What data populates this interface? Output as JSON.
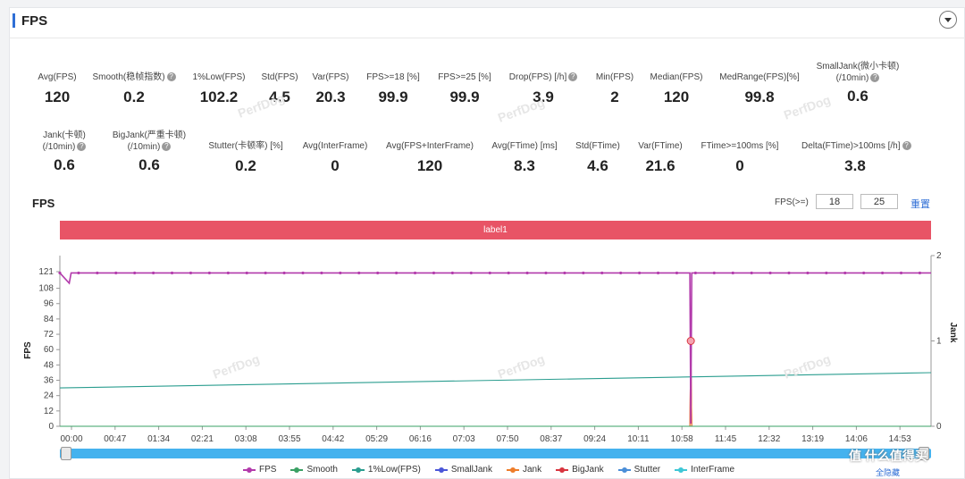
{
  "header": {
    "title": "FPS"
  },
  "metrics_row1": [
    {
      "label": "Avg(FPS)",
      "value": "120",
      "help": false
    },
    {
      "label": "Smooth(稳帧指数)",
      "value": "0.2",
      "help": true
    },
    {
      "label": "1%Low(FPS)",
      "value": "102.2",
      "help": false
    },
    {
      "label": "Std(FPS)",
      "value": "4.5",
      "help": false
    },
    {
      "label": "Var(FPS)",
      "value": "20.3",
      "help": false
    },
    {
      "label": "FPS>=18 [%]",
      "value": "99.9",
      "help": false
    },
    {
      "label": "FPS>=25 [%]",
      "value": "99.9",
      "help": false
    },
    {
      "label": "Drop(FPS) [/h]",
      "value": "3.9",
      "help": true
    },
    {
      "label": "Min(FPS)",
      "value": "2",
      "help": false
    },
    {
      "label": "Median(FPS)",
      "value": "120",
      "help": false
    },
    {
      "label": "MedRange(FPS)[%]",
      "value": "99.8",
      "help": false
    },
    {
      "label": "SmallJank(微小卡顿)",
      "label2": "(/10min)",
      "value": "0.6",
      "help": true
    }
  ],
  "metrics_row2": [
    {
      "label": "Jank(卡顿)",
      "label2": "(/10min)",
      "value": "0.6",
      "help": true
    },
    {
      "label": "BigJank(严重卡顿)",
      "label2": "(/10min)",
      "value": "0.6",
      "help": true
    },
    {
      "label": "Stutter(卡顿率) [%]",
      "value": "0.2",
      "help": false
    },
    {
      "label": "Avg(InterFrame)",
      "value": "0",
      "help": false
    },
    {
      "label": "Avg(FPS+InterFrame)",
      "value": "120",
      "help": false
    },
    {
      "label": "Avg(FTime) [ms]",
      "value": "8.3",
      "help": false
    },
    {
      "label": "Std(FTime)",
      "value": "4.6",
      "help": false
    },
    {
      "label": "Var(FTime)",
      "value": "21.6",
      "help": false
    },
    {
      "label": "FTime>=100ms [%]",
      "value": "0",
      "help": false
    },
    {
      "label": "Delta(FTime)>100ms [/h]",
      "value": "3.8",
      "help": true
    }
  ],
  "watermark": "PerfDog",
  "chart_panel": {
    "title": "FPS",
    "threshold_label": "FPS(>=)",
    "threshold_1": "18",
    "threshold_2": "25",
    "reset_label": "重置",
    "label_bar": "label1",
    "hide_all_label": "全隐藏",
    "brand": "值 什么值得买"
  },
  "chart_data": {
    "type": "line",
    "title": "",
    "ylabel": "FPS",
    "y2label": "Jank",
    "ylim": [
      0,
      121
    ],
    "y2lim": [
      0,
      2
    ],
    "yticks": [
      0,
      12,
      24,
      36,
      48,
      60,
      72,
      84,
      96,
      108,
      121
    ],
    "y2ticks": [
      0,
      1,
      2
    ],
    "xticks": [
      "00:00",
      "00:47",
      "01:34",
      "02:21",
      "03:08",
      "03:55",
      "04:42",
      "05:29",
      "06:16",
      "07:03",
      "07:50",
      "08:37",
      "09:24",
      "10:11",
      "10:58",
      "11:45",
      "12:32",
      "13:19",
      "14:06",
      "14:53"
    ],
    "x_range_seconds": [
      0,
      932
    ],
    "series": [
      {
        "name": "FPS",
        "color": "#b23aab",
        "points": [
          [
            0,
            120
          ],
          [
            10,
            112
          ],
          [
            12,
            120
          ],
          [
            674,
            120
          ],
          [
            675,
            2
          ],
          [
            676,
            120
          ],
          [
            932,
            120
          ]
        ]
      },
      {
        "name": "Smooth",
        "color": "#3aa064",
        "points": [
          [
            0,
            0
          ],
          [
            932,
            0
          ]
        ]
      },
      {
        "name": "1%Low(FPS)",
        "color": "#2a9d8f",
        "points": [
          [
            0,
            30
          ],
          [
            932,
            42
          ]
        ]
      },
      {
        "name": "SmallJank",
        "color": "#4a56d8",
        "points": [
          [
            0,
            0
          ],
          [
            932,
            0
          ]
        ]
      },
      {
        "name": "Jank",
        "color": "#ee7d2a",
        "points": [
          [
            0,
            0
          ],
          [
            674,
            0
          ],
          [
            675,
            1
          ],
          [
            676,
            0
          ],
          [
            932,
            0
          ]
        ]
      },
      {
        "name": "BigJank",
        "color": "#d8343f",
        "points": [
          [
            0,
            0
          ],
          [
            674,
            0
          ],
          [
            675,
            1
          ],
          [
            676,
            0
          ],
          [
            932,
            0
          ]
        ]
      },
      {
        "name": "Stutter",
        "color": "#4a8ed8",
        "points": [
          [
            0,
            0
          ],
          [
            932,
            0
          ]
        ]
      },
      {
        "name": "InterFrame",
        "color": "#3ec7d6",
        "points": [
          [
            0,
            0
          ],
          [
            932,
            0
          ]
        ]
      }
    ],
    "grid": false,
    "legend_position": "bottom"
  }
}
